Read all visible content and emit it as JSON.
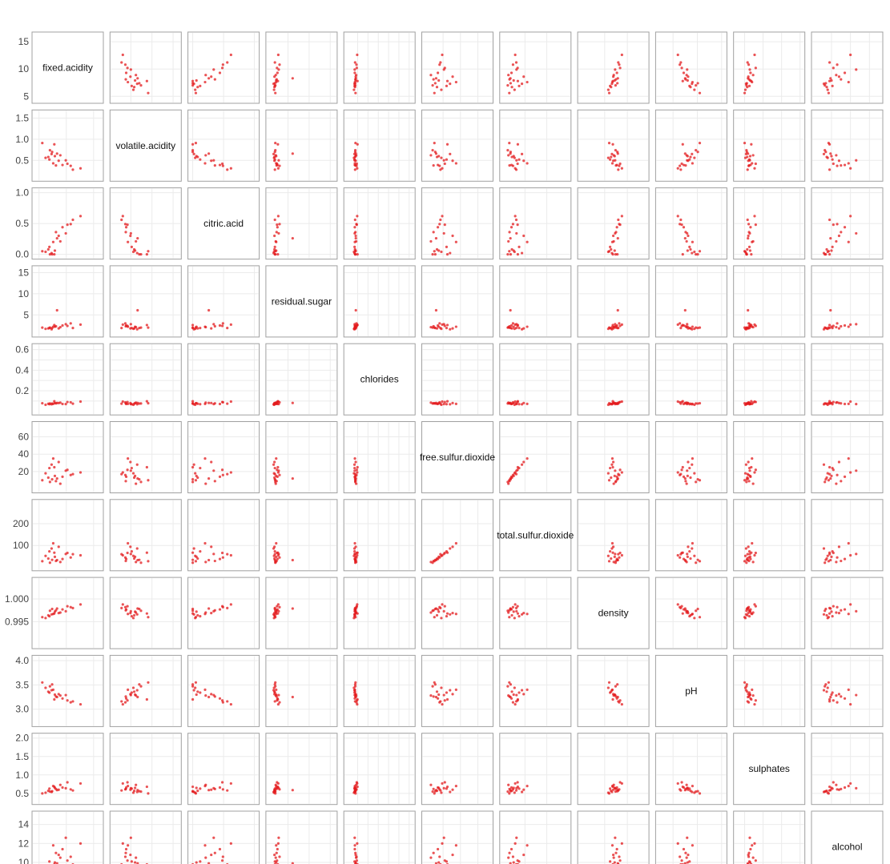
{
  "chart_data": {
    "type": "scatter",
    "layout": "scatterplot-matrix",
    "point_color": "#e31a1c",
    "frame_color": "#a0a0a0",
    "grid": true,
    "variables": [
      {
        "name": "fixed.acidity",
        "range": [
          4.6,
          15.9
        ],
        "ticks": [
          5,
          10,
          15
        ],
        "tick_labels": [
          "5",
          "10",
          "15"
        ],
        "sample": [
          7.4,
          7.8,
          11.2,
          7.9,
          6.7,
          8.9,
          7.3,
          8.1,
          10.2,
          6.2,
          9.3,
          8.6,
          7.0,
          12.6,
          6.9,
          8.3,
          7.6,
          10.8,
          5.6,
          9.9
        ]
      },
      {
        "name": "volatile.acidity",
        "range": [
          0.12,
          1.58
        ],
        "ticks": [
          0.5,
          1.0,
          1.5
        ],
        "tick_labels": [
          "0.5",
          "1.0",
          "1.5"
        ],
        "sample": [
          0.7,
          0.88,
          0.28,
          0.6,
          0.58,
          0.62,
          0.65,
          0.38,
          0.42,
          0.56,
          0.39,
          0.49,
          0.74,
          0.31,
          0.52,
          0.66,
          0.43,
          0.37,
          0.91,
          0.5
        ]
      },
      {
        "name": "citric.acid",
        "range": [
          0.0,
          1.0
        ],
        "ticks": [
          0.0,
          0.5,
          1.0
        ],
        "tick_labels": [
          "0.0",
          "0.5",
          "1.0"
        ],
        "sample": [
          0.0,
          0.0,
          0.56,
          0.06,
          0.08,
          0.21,
          0.02,
          0.36,
          0.48,
          0.04,
          0.44,
          0.3,
          0.0,
          0.62,
          0.12,
          0.26,
          0.2,
          0.49,
          0.05,
          0.34
        ]
      },
      {
        "name": "residual.sugar",
        "range": [
          0.9,
          15.5
        ],
        "ticks": [
          5,
          10,
          15
        ],
        "tick_labels": [
          "5",
          "10",
          "15"
        ],
        "sample": [
          1.9,
          2.6,
          1.9,
          2.2,
          1.8,
          2.1,
          1.6,
          2.3,
          2.4,
          1.7,
          2.5,
          1.8,
          2.0,
          2.7,
          1.9,
          6.1,
          2.2,
          3.0,
          2.0,
          2.8
        ]
      },
      {
        "name": "chlorides",
        "range": [
          0.012,
          0.611
        ],
        "ticks": [
          0.1,
          0.2,
          0.3,
          0.4,
          0.5,
          0.6
        ],
        "tick_labels": [
          "0.2",
          "0.4",
          "0.6"
        ],
        "x_tick_values": [
          0.2,
          0.4,
          0.6
        ],
        "y_tick_values": [
          0.2,
          0.4,
          0.6
        ],
        "sample": [
          0.076,
          0.098,
          0.075,
          0.08,
          0.074,
          0.085,
          0.069,
          0.078,
          0.091,
          0.064,
          0.072,
          0.081,
          0.077,
          0.095,
          0.07,
          0.082,
          0.073,
          0.088,
          0.079,
          0.071
        ]
      },
      {
        "name": "free.sulfur.dioxide",
        "range": [
          1,
          72
        ],
        "ticks": [
          20,
          40,
          60
        ],
        "tick_labels": [
          "20",
          "40",
          "60"
        ],
        "sample": [
          11,
          25,
          17,
          15,
          13,
          6,
          28,
          9,
          22,
          18,
          14,
          31,
          8,
          19,
          24,
          12,
          35,
          16,
          10,
          21
        ]
      },
      {
        "name": "total.sulfur.dioxide",
        "range": [
          6,
          289
        ],
        "ticks": [
          100,
          200
        ],
        "tick_labels": [
          "100",
          "200"
        ],
        "sample": [
          34,
          67,
          60,
          48,
          40,
          24,
          86,
          29,
          66,
          52,
          38,
          94,
          21,
          55,
          73,
          33,
          110,
          45,
          28,
          61
        ]
      },
      {
        "name": "density",
        "range": [
          0.9901,
          1.0037
        ],
        "ticks": [
          0.995,
          1.0
        ],
        "tick_labels": [
          "0.995",
          "1.000"
        ],
        "sample": [
          0.9978,
          0.9968,
          0.998,
          0.9972,
          0.9964,
          0.997,
          0.9966,
          0.9975,
          0.9984,
          0.9958,
          0.9977,
          0.9969,
          0.9974,
          0.9988,
          0.9962,
          0.9979,
          0.9967,
          0.9982,
          0.996,
          0.9973
        ]
      },
      {
        "name": "pH",
        "range": [
          2.74,
          4.01
        ],
        "ticks": [
          3.0,
          3.5,
          4.0
        ],
        "tick_labels": [
          "3.0",
          "3.5",
          "4.0"
        ],
        "sample": [
          3.51,
          3.2,
          3.16,
          3.3,
          3.36,
          3.28,
          3.39,
          3.26,
          3.18,
          3.44,
          3.22,
          3.31,
          3.47,
          3.1,
          3.34,
          3.25,
          3.4,
          3.14,
          3.55,
          3.29
        ]
      },
      {
        "name": "sulphates",
        "range": [
          0.33,
          2.0
        ],
        "ticks": [
          0.5,
          1.0,
          1.5,
          2.0
        ],
        "tick_labels": [
          "0.5",
          "1.0",
          "1.5",
          "2.0"
        ],
        "sample": [
          0.56,
          0.68,
          0.58,
          0.65,
          0.57,
          0.73,
          0.54,
          0.62,
          0.8,
          0.52,
          0.66,
          0.6,
          0.55,
          0.77,
          0.63,
          0.59,
          0.7,
          0.61,
          0.5,
          0.64
        ]
      },
      {
        "name": "alcohol",
        "range": [
          8.4,
          14.9
        ],
        "ticks": [
          10,
          12,
          14
        ],
        "tick_labels": [
          "10",
          "12",
          "14"
        ],
        "sample": [
          9.4,
          9.8,
          9.8,
          10.0,
          9.5,
          10.5,
          9.2,
          11.0,
          10.2,
          9.6,
          11.4,
          10.8,
          9.3,
          12.0,
          10.1,
          9.9,
          11.8,
          10.6,
          9.7,
          12.6
        ]
      }
    ]
  }
}
